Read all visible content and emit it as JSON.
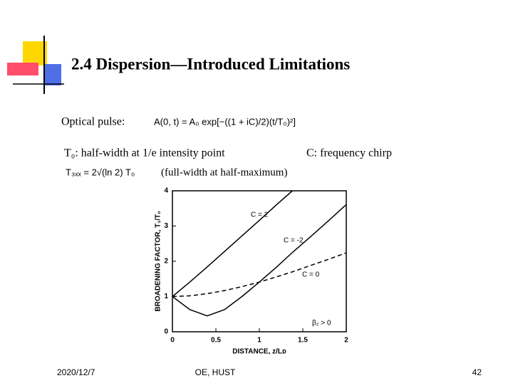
{
  "title": "2.4  Dispersion—Introduced Limitations",
  "pulse_label": "Optical pulse:",
  "pulse_equation": "A(0, t) = A₀ exp[−((1 + iC)/2)(t/T₀)²]",
  "t0_note": "T₀: half-width at 1/e intensity point",
  "chirp_note": "C: frequency chirp",
  "fwhm_equation": "T₃ₓₓ = 2√(ln 2) T₀",
  "fwhm_note": "(full-width at half-maximum)",
  "footer": {
    "date": "2020/12/7",
    "org": "OE, HUST",
    "page": "42"
  },
  "chart_data": {
    "type": "line",
    "xlabel": "DISTANCE, z/Lᴅ",
    "ylabel": "BROADENING FACTOR, T₁/T₀",
    "x": [
      0,
      0.2,
      0.4,
      0.6,
      0.8,
      1.0,
      1.2,
      1.38,
      1.6,
      1.8,
      2.0
    ],
    "series": [
      {
        "name": "C = 2",
        "color": "#000000",
        "dash": false,
        "values": [
          1,
          1.41,
          1.84,
          2.28,
          2.72,
          3.16,
          3.61,
          4.0,
          null,
          null,
          null
        ]
      },
      {
        "name": "C = -2",
        "color": "#000000",
        "dash": false,
        "values": [
          1,
          0.63,
          0.45,
          0.63,
          1.0,
          1.41,
          1.84,
          2.25,
          2.72,
          3.16,
          3.61
        ]
      },
      {
        "name": "C = 0",
        "color": "#000000",
        "dash": true,
        "values": [
          1,
          1.02,
          1.08,
          1.17,
          1.28,
          1.41,
          1.56,
          1.7,
          1.89,
          2.06,
          2.24
        ]
      }
    ],
    "annotation": "β₂ > 0",
    "xlim": [
      0,
      2
    ],
    "xticks": [
      0,
      0.5,
      1,
      1.5,
      2
    ],
    "ylim": [
      0,
      4
    ],
    "yticks": [
      0,
      1,
      2,
      3,
      4
    ]
  }
}
